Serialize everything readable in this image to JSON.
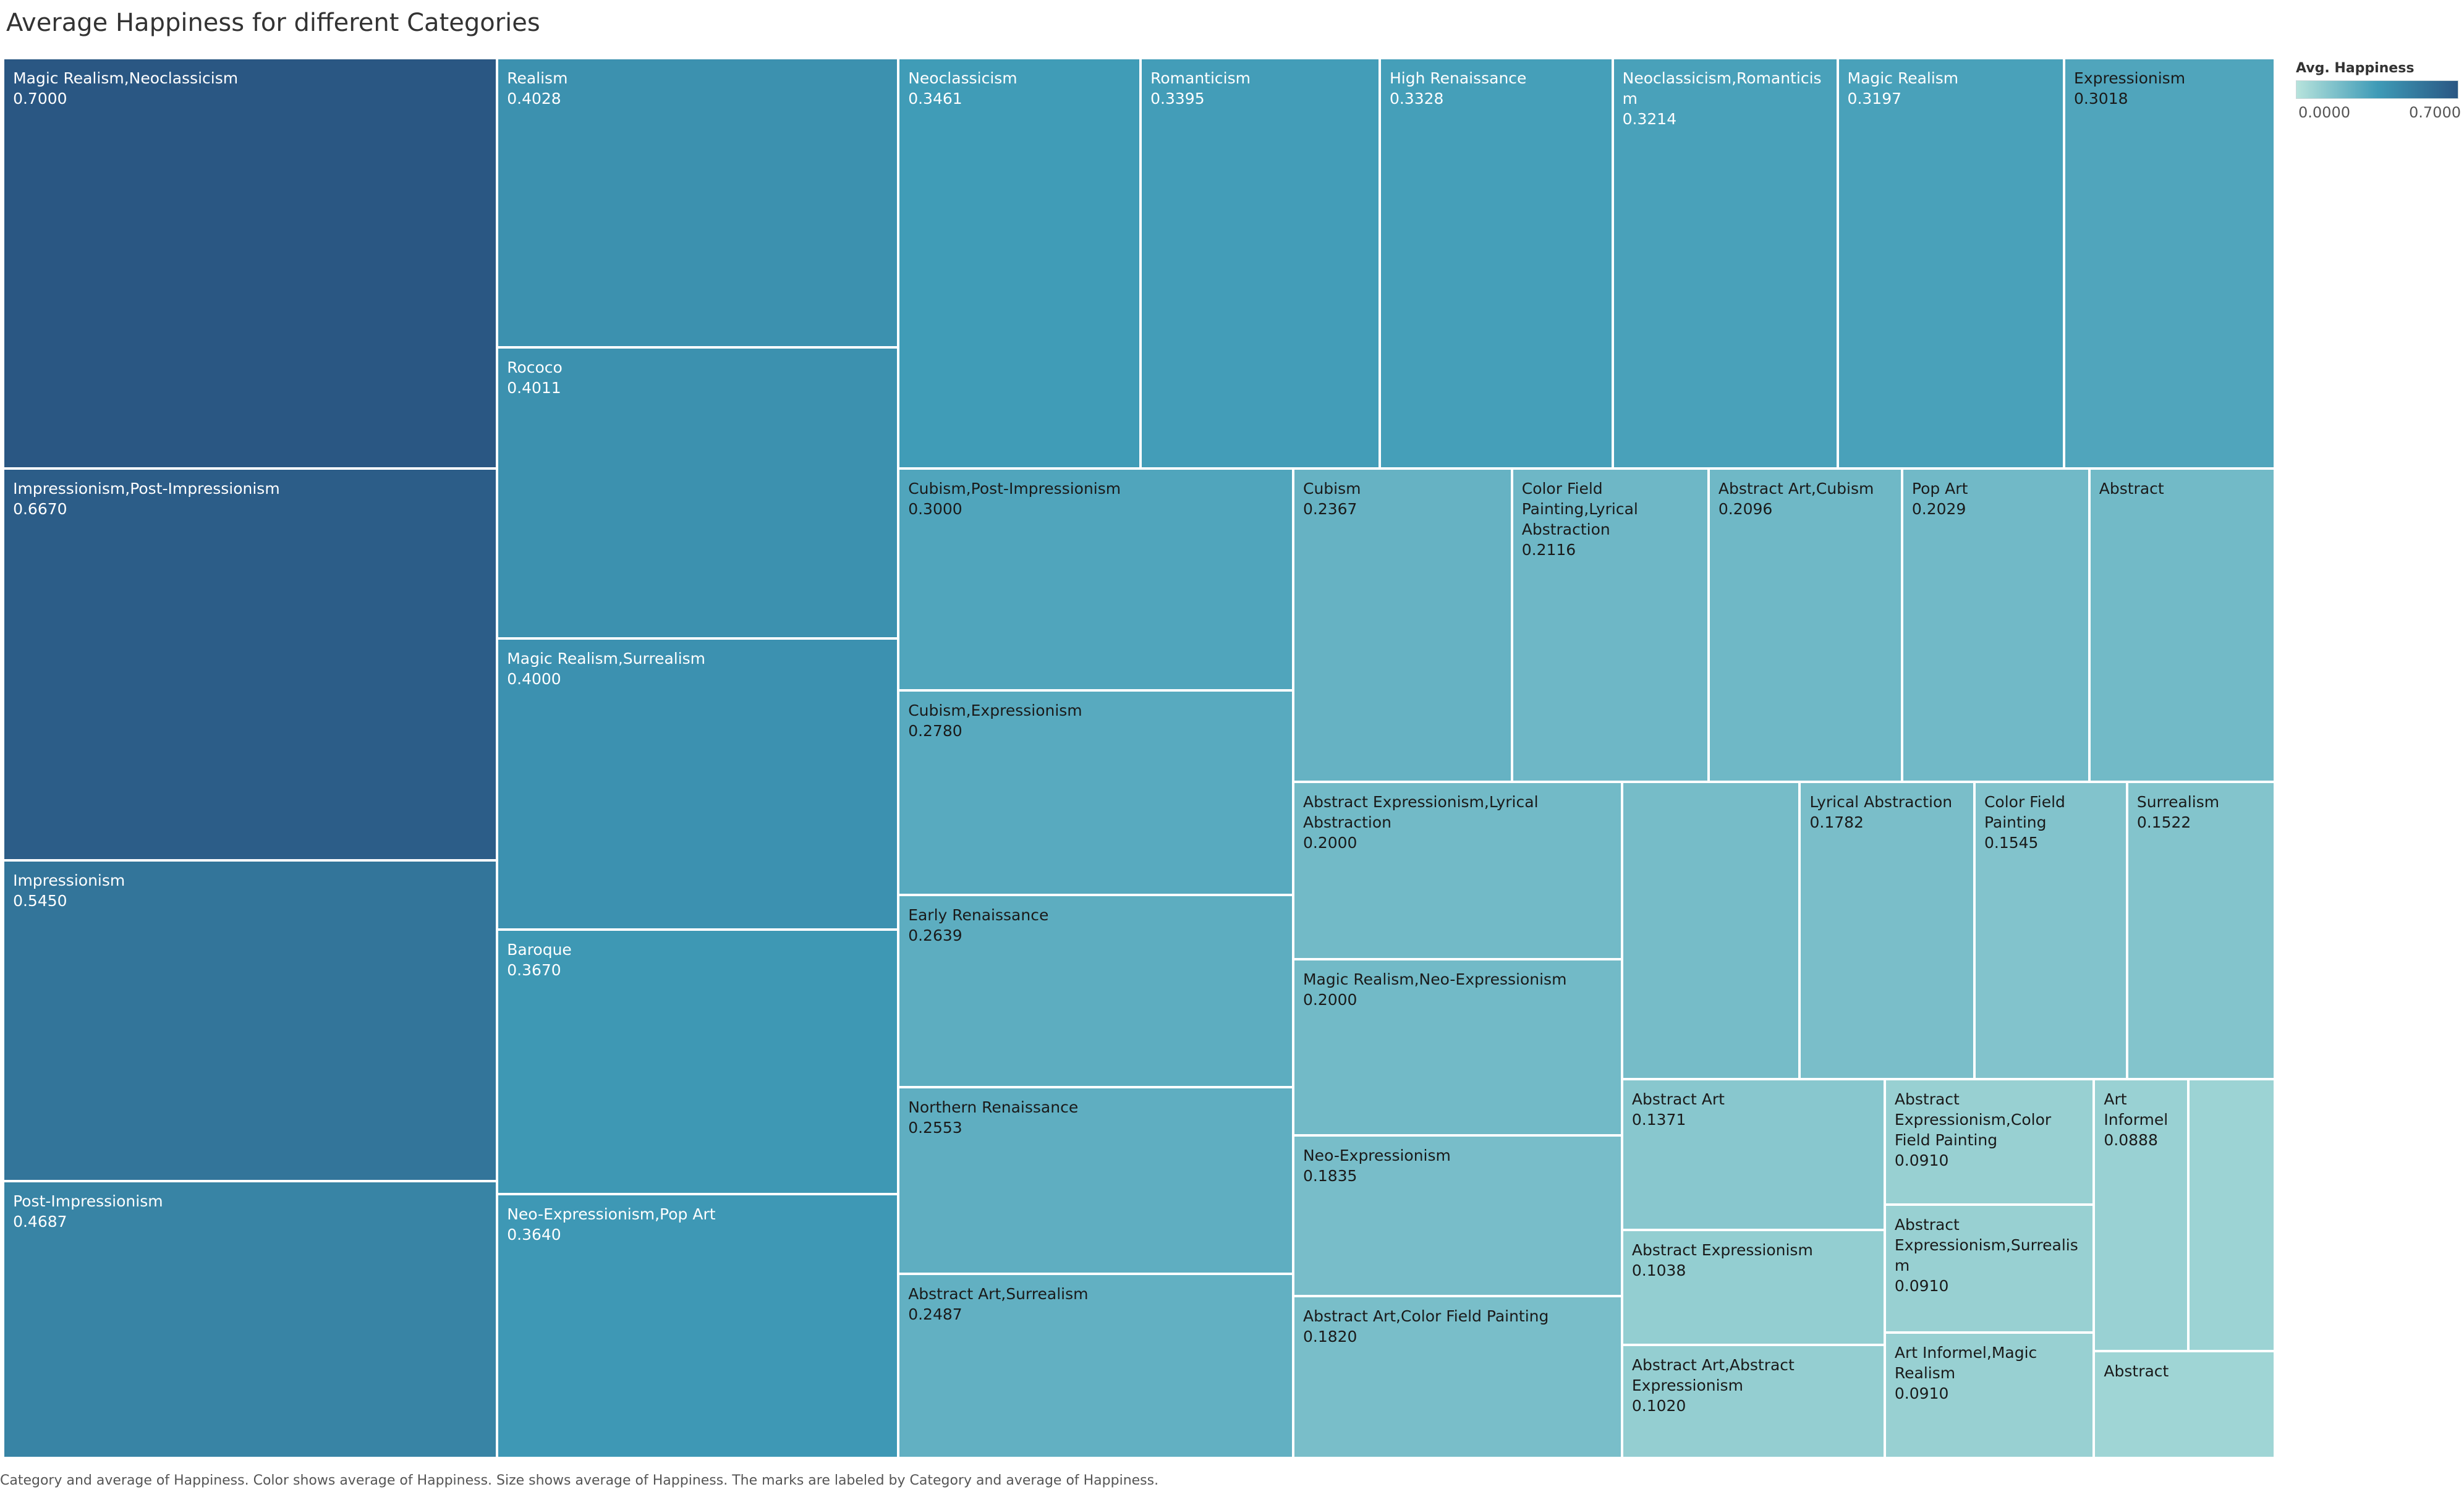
{
  "title": "Average Happiness for different Categories",
  "legend": {
    "title": "Avg. Happiness",
    "min_label": "0.0000",
    "max_label": "0.7000",
    "color_low": "#b7e3dc",
    "color_mid": "#3f9bb7",
    "color_high": "#2a5783"
  },
  "caption": "Category and average of Happiness.  Color shows average of Happiness.  Size shows average of Happiness.  The marks are labeled by Category and average of Happiness.",
  "chart_data": {
    "type": "treemap",
    "title": "Average Happiness for different Categories",
    "color_measure": "Avg. Happiness",
    "size_measure": "Avg. Happiness",
    "color_range": [
      0.0,
      0.7
    ],
    "tiles": [
      {
        "category": "Magic Realism,Neoclassicism",
        "value": "0.7000",
        "v": 0.7
      },
      {
        "category": "Impressionism,Post-Impressionism",
        "value": "0.6670",
        "v": 0.667
      },
      {
        "category": "Impressionism",
        "value": "0.5450",
        "v": 0.545
      },
      {
        "category": "Post-Impressionism",
        "value": "0.4687",
        "v": 0.4687
      },
      {
        "category": "Realism",
        "value": "0.4028",
        "v": 0.4028
      },
      {
        "category": "Rococo",
        "value": "0.4011",
        "v": 0.4011
      },
      {
        "category": "Magic Realism,Surrealism",
        "value": "0.4000",
        "v": 0.4
      },
      {
        "category": "Baroque",
        "value": "0.3670",
        "v": 0.367
      },
      {
        "category": "Neo-Expressionism,Pop Art",
        "value": "0.3640",
        "v": 0.364
      },
      {
        "category": "Neoclassicism",
        "value": "0.3461",
        "v": 0.3461
      },
      {
        "category": "Romanticism",
        "value": "0.3395",
        "v": 0.3395
      },
      {
        "category": "High Renaissance",
        "value": "0.3328",
        "v": 0.3328
      },
      {
        "category": "Neoclassicism,Romanticism",
        "value": "0.3214",
        "v": 0.3214
      },
      {
        "category": "Magic Realism",
        "value": "0.3197",
        "v": 0.3197
      },
      {
        "category": "Expressionism",
        "value": "0.3018",
        "v": 0.3018
      },
      {
        "category": "Cubism,Post-Impressionism",
        "value": "0.3000",
        "v": 0.3
      },
      {
        "category": "Cubism,Expressionism",
        "value": "0.2780",
        "v": 0.278
      },
      {
        "category": "Early Renaissance",
        "value": "0.2639",
        "v": 0.2639
      },
      {
        "category": "Northern Renaissance",
        "value": "0.2553",
        "v": 0.2553
      },
      {
        "category": "Abstract Art,Surrealism",
        "value": "0.2487",
        "v": 0.2487
      },
      {
        "category": "Cubism",
        "value": "0.2367",
        "v": 0.2367
      },
      {
        "category": "Color Field Painting,Lyrical Abstraction",
        "value": "0.2116",
        "v": 0.2116
      },
      {
        "category": "Abstract Art,Cubism",
        "value": "0.2096",
        "v": 0.2096
      },
      {
        "category": "Pop Art",
        "value": "0.2029",
        "v": 0.2029
      },
      {
        "category": "Abstract",
        "value": "",
        "v": 0.2
      },
      {
        "category": "Abstract Expressionism,Lyrical Abstraction",
        "value": "0.2000",
        "v": 0.2
      },
      {
        "category": "Magic Realism,Neo-Expressionism",
        "value": "0.2000",
        "v": 0.2
      },
      {
        "category": "Neo-Expressionism",
        "value": "0.1835",
        "v": 0.1835
      },
      {
        "category": "Abstract Art,Color Field Painting",
        "value": "0.1820",
        "v": 0.182
      },
      {
        "category": "",
        "value": "",
        "v": 0.19
      },
      {
        "category": "Lyrical Abstraction",
        "value": "0.1782",
        "v": 0.1782
      },
      {
        "category": "Color Field Painting",
        "value": "0.1545",
        "v": 0.1545
      },
      {
        "category": "Surrealism",
        "value": "0.1522",
        "v": 0.1522
      },
      {
        "category": "Abstract Art",
        "value": "0.1371",
        "v": 0.1371
      },
      {
        "category": "Abstract Expressionism",
        "value": "0.1038",
        "v": 0.1038
      },
      {
        "category": "Abstract Art,Abstract Expressionism",
        "value": "0.1020",
        "v": 0.102
      },
      {
        "category": "Abstract Expressionism,Color Field Painting",
        "value": "0.0910",
        "v": 0.091
      },
      {
        "category": "Abstract Expressionism,Surrealism",
        "value": "0.0910",
        "v": 0.091
      },
      {
        "category": "Art Informel,Magic Realism",
        "value": "0.0910",
        "v": 0.091
      },
      {
        "category": "Art Informel",
        "value": "0.0888",
        "v": 0.0888
      },
      {
        "category": "",
        "value": "",
        "v": 0.08
      },
      {
        "category": "Abstract",
        "value": "",
        "v": 0.07
      }
    ]
  }
}
